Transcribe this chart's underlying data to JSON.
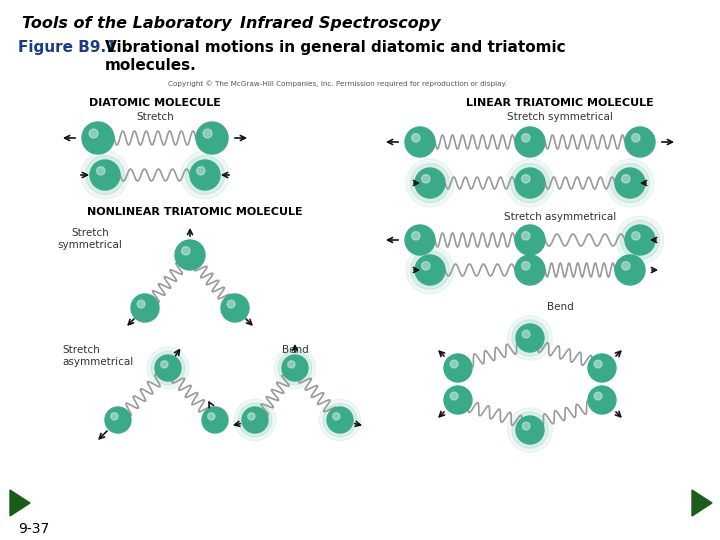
{
  "title_left": "Tools of the Laboratory",
  "title_right": "Infrared Spectroscopy",
  "figure_label": "Figure B9.1",
  "copyright": "Copyright © The McGraw-Hill Companies, Inc. Permission required for reproduction or display.",
  "page_num": "9-37",
  "bg_color": "#ffffff",
  "green_color": "#3aaa8a",
  "arrow_color": "#111111",
  "spring_color": "#999999",
  "nav_color": "#1a5c1a",
  "diatomic_label": "DIATOMIC MOLECULE",
  "nonlinear_label": "NONLINEAR TRIATOMIC MOLECULE",
  "linear_label": "LINEAR TRIATOMIC MOLECULE",
  "stretch_label": "Stretch",
  "stretch_sym_label": "Stretch\nsymmetrical",
  "stretch_asym_label": "Stretch\nasymmetrical",
  "bend_label": "Bend"
}
